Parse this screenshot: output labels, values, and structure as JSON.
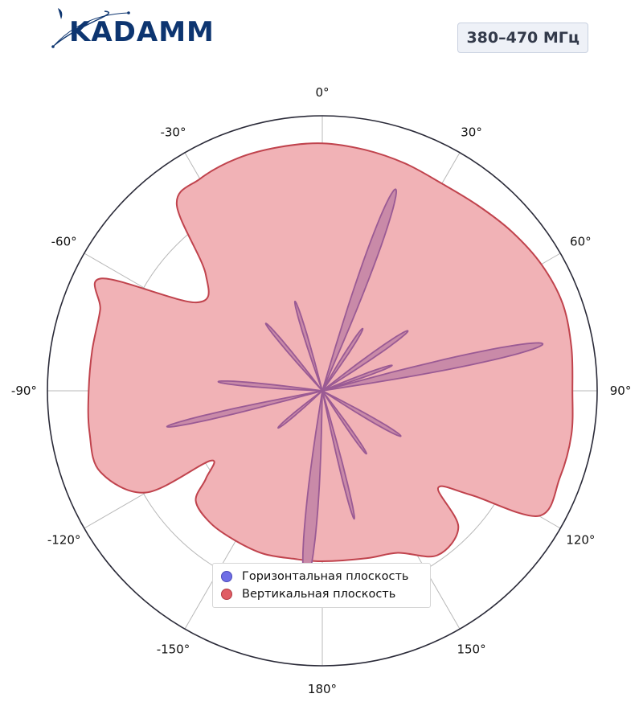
{
  "brand": {
    "logo_text": "KADAMM",
    "badge": "380–470 МГц"
  },
  "colors": {
    "horizontal": "#6f6ee6",
    "vertical": "#e05d64",
    "vertical_fill": "#f1b2b6",
    "overlap_fill": "#c98aa8",
    "overlap_stroke": "#9a5a94"
  },
  "chart_data": {
    "type": "polar-area",
    "theta_zero": "top",
    "direction": "clockwise",
    "theta_ticks": [
      "0°",
      "30°",
      "60°",
      "90°",
      "120°",
      "150°",
      "180°",
      "-150°",
      "-120°",
      "-90°",
      "-60°",
      "-30°"
    ],
    "r_range": [
      0,
      1
    ],
    "r_gridlines": [
      0.25,
      0.5,
      0.75
    ],
    "legend": {
      "placement": "bottom-center",
      "entries": [
        "Горизонтальная плоскость",
        "Вертикальная плоскость"
      ]
    },
    "series": [
      {
        "name": "Вертикальная плоскость",
        "color": "#e05d64",
        "points": [
          [
            0,
            0.9
          ],
          [
            10,
            0.89
          ],
          [
            20,
            0.88
          ],
          [
            30,
            0.87
          ],
          [
            40,
            0.88
          ],
          [
            50,
            0.9
          ],
          [
            60,
            0.92
          ],
          [
            70,
            0.93
          ],
          [
            80,
            0.92
          ],
          [
            90,
            0.91
          ],
          [
            100,
            0.92
          ],
          [
            110,
            0.92
          ],
          [
            120,
            0.91
          ],
          [
            125,
            0.66
          ],
          [
            130,
            0.55
          ],
          [
            135,
            0.7
          ],
          [
            145,
            0.73
          ],
          [
            155,
            0.65
          ],
          [
            165,
            0.63
          ],
          [
            180,
            0.62
          ],
          [
            190,
            0.62
          ],
          [
            200,
            0.63
          ],
          [
            210,
            0.63
          ],
          [
            220,
            0.63
          ],
          [
            229,
            0.61
          ],
          [
            233,
            0.53
          ],
          [
            238,
            0.48
          ],
          [
            240,
            0.74
          ],
          [
            250,
            0.86
          ],
          [
            260,
            0.86
          ],
          [
            270,
            0.85
          ],
          [
            280,
            0.85
          ],
          [
            290,
            0.86
          ],
          [
            297,
            0.9
          ],
          [
            305,
            0.56
          ],
          [
            315,
            0.6
          ],
          [
            322,
            0.86
          ],
          [
            330,
            0.89
          ],
          [
            340,
            0.9
          ],
          [
            350,
            0.9
          ]
        ]
      },
      {
        "name": "Горизонтальная плоскость",
        "color": "#6f6ee6",
        "lobes": [
          {
            "angle": 20,
            "r": 0.78,
            "width_deg": 3.5
          },
          {
            "angle": 78,
            "r": 0.82,
            "width_deg": 3.2
          },
          {
            "angle": 185,
            "r": 0.7,
            "width_deg": 4
          },
          {
            "angle": 166,
            "r": 0.48,
            "width_deg": 2
          },
          {
            "angle": 257,
            "r": 0.58,
            "width_deg": 2.2
          },
          {
            "angle": 275,
            "r": 0.38,
            "width_deg": 2.5
          },
          {
            "angle": 343,
            "r": 0.34,
            "width_deg": 2.5
          },
          {
            "angle": 320,
            "r": 0.32,
            "width_deg": 2.5
          },
          {
            "angle": 33,
            "r": 0.27,
            "width_deg": 3
          },
          {
            "angle": 55,
            "r": 0.38,
            "width_deg": 3
          },
          {
            "angle": 70,
            "r": 0.27,
            "width_deg": 2.5
          },
          {
            "angle": 120,
            "r": 0.33,
            "width_deg": 3
          },
          {
            "angle": 145,
            "r": 0.28,
            "width_deg": 2.5
          },
          {
            "angle": 230,
            "r": 0.21,
            "width_deg": 3
          }
        ]
      }
    ]
  }
}
